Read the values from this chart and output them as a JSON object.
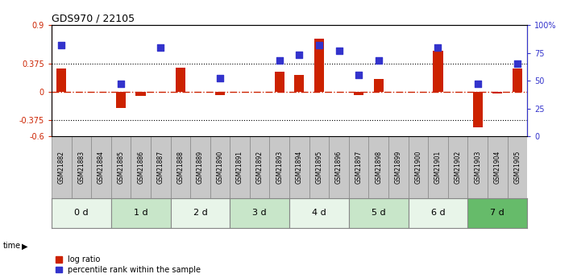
{
  "title": "GDS970 / 22105",
  "samples": [
    "GSM21882",
    "GSM21883",
    "GSM21884",
    "GSM21885",
    "GSM21886",
    "GSM21887",
    "GSM21888",
    "GSM21889",
    "GSM21890",
    "GSM21891",
    "GSM21892",
    "GSM21893",
    "GSM21894",
    "GSM21895",
    "GSM21896",
    "GSM21897",
    "GSM21898",
    "GSM21899",
    "GSM21900",
    "GSM21901",
    "GSM21902",
    "GSM21903",
    "GSM21904",
    "GSM21905"
  ],
  "log_ratio": [
    0.31,
    0.0,
    0.0,
    -0.22,
    -0.05,
    0.0,
    0.33,
    0.0,
    -0.04,
    0.0,
    0.0,
    0.27,
    0.23,
    0.72,
    0.0,
    -0.04,
    0.17,
    0.0,
    0.0,
    0.55,
    0.0,
    -0.48,
    -0.02,
    0.31
  ],
  "percentile_rank": [
    82,
    0,
    0,
    47,
    0,
    80,
    0,
    0,
    52,
    0,
    0,
    68,
    73,
    82,
    77,
    55,
    68,
    0,
    0,
    80,
    0,
    47,
    0,
    65
  ],
  "ylim_left": [
    -0.6,
    0.9
  ],
  "ylim_right": [
    0,
    100
  ],
  "yticks_left": [
    -0.6,
    -0.375,
    0,
    0.375,
    0.9
  ],
  "ytick_labels_left": [
    "-0.6",
    "-0.375",
    "0",
    "0.375",
    "0.9"
  ],
  "yticks_right": [
    0,
    25,
    50,
    75,
    100
  ],
  "ytick_labels_right": [
    "0",
    "25",
    "50",
    "75",
    "100%"
  ],
  "hline_dotted": [
    0.375,
    -0.375
  ],
  "hline_zero": 0.0,
  "time_groups": [
    {
      "label": "0 d",
      "start": 0,
      "end": 3,
      "color": "#e8f5e9"
    },
    {
      "label": "1 d",
      "start": 3,
      "end": 6,
      "color": "#c8e6c9"
    },
    {
      "label": "2 d",
      "start": 6,
      "end": 9,
      "color": "#e8f5e9"
    },
    {
      "label": "3 d",
      "start": 9,
      "end": 12,
      "color": "#c8e6c9"
    },
    {
      "label": "4 d",
      "start": 12,
      "end": 15,
      "color": "#e8f5e9"
    },
    {
      "label": "5 d",
      "start": 15,
      "end": 18,
      "color": "#c8e6c9"
    },
    {
      "label": "6 d",
      "start": 18,
      "end": 21,
      "color": "#e8f5e9"
    },
    {
      "label": "7 d",
      "start": 21,
      "end": 24,
      "color": "#66bb6a"
    }
  ],
  "bar_color": "#cc2200",
  "point_color": "#3333cc",
  "zero_line_color": "#cc2200",
  "dotted_line_color": "#000000",
  "left_tick_color": "#cc2200",
  "right_tick_color": "#3333cc",
  "legend_log_ratio": "log ratio",
  "legend_percentile": "percentile rank within the sample",
  "bar_width": 0.5,
  "point_size": 30,
  "sample_cell_color": "#c8c8c8"
}
